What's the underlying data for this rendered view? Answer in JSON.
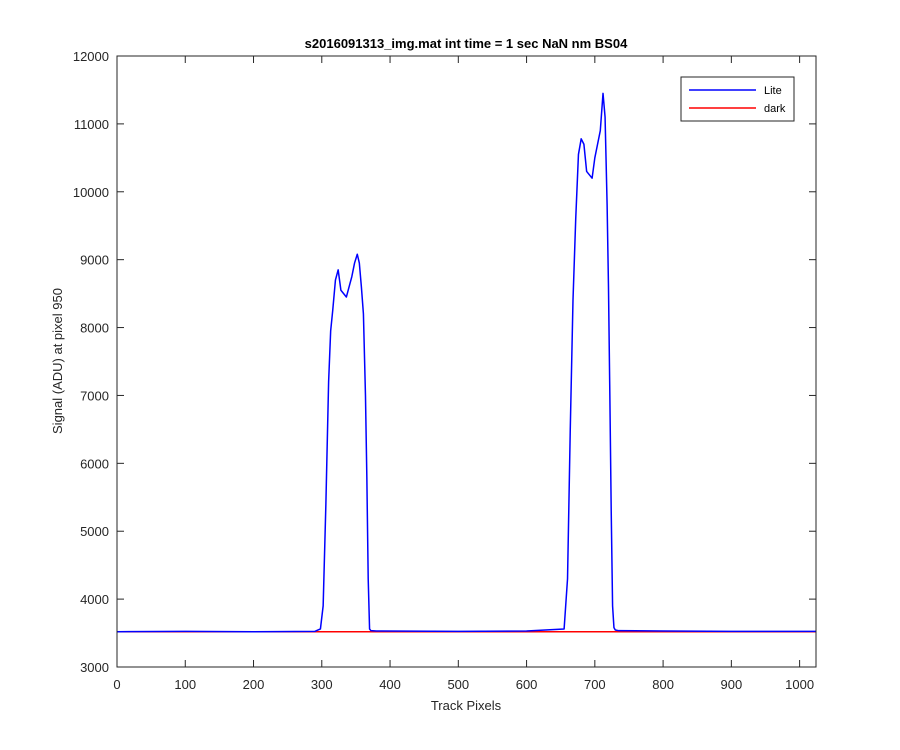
{
  "chart_data": {
    "type": "line",
    "title": "s2016091313_img.mat int time = 1 sec  NaN nm BS04",
    "xlabel": "Track Pixels",
    "ylabel": "Signal (ADU) at pixel 950",
    "xlim": [
      0,
      1024
    ],
    "ylim": [
      3000,
      12000
    ],
    "xticks": [
      0,
      100,
      200,
      300,
      400,
      500,
      600,
      700,
      800,
      900,
      1000
    ],
    "yticks": [
      3000,
      4000,
      5000,
      6000,
      7000,
      8000,
      9000,
      10000,
      11000,
      12000
    ],
    "grid": false,
    "legend_position": "top-right",
    "series": [
      {
        "name": "Lite",
        "color": "#0000ff",
        "x": [
          0,
          100,
          200,
          290,
          298,
          302,
          306,
          310,
          313,
          316,
          320,
          324,
          328,
          332,
          336,
          340,
          344,
          348,
          352,
          355,
          358,
          361,
          364,
          366,
          368,
          370,
          372,
          380,
          500,
          600,
          655,
          660,
          664,
          668,
          672,
          676,
          680,
          684,
          688,
          692,
          696,
          700,
          704,
          708,
          712,
          715,
          718,
          720,
          722,
          724,
          726,
          728,
          730,
          735,
          800,
          900,
          1024
        ],
        "y": [
          3520,
          3525,
          3520,
          3525,
          3560,
          3900,
          5400,
          7200,
          7950,
          8250,
          8700,
          8850,
          8550,
          8500,
          8450,
          8600,
          8750,
          8950,
          9080,
          8950,
          8600,
          8200,
          7000,
          5800,
          4300,
          3560,
          3535,
          3530,
          3525,
          3530,
          3560,
          4300,
          6500,
          8400,
          9600,
          10550,
          10780,
          10700,
          10300,
          10250,
          10200,
          10500,
          10700,
          10900,
          11450,
          11100,
          9800,
          8600,
          7000,
          5300,
          3900,
          3580,
          3545,
          3535,
          3530,
          3525,
          3525
        ]
      },
      {
        "name": "dark",
        "color": "#ff0000",
        "x": [
          0,
          1024
        ],
        "y": [
          3520,
          3520
        ]
      }
    ]
  }
}
